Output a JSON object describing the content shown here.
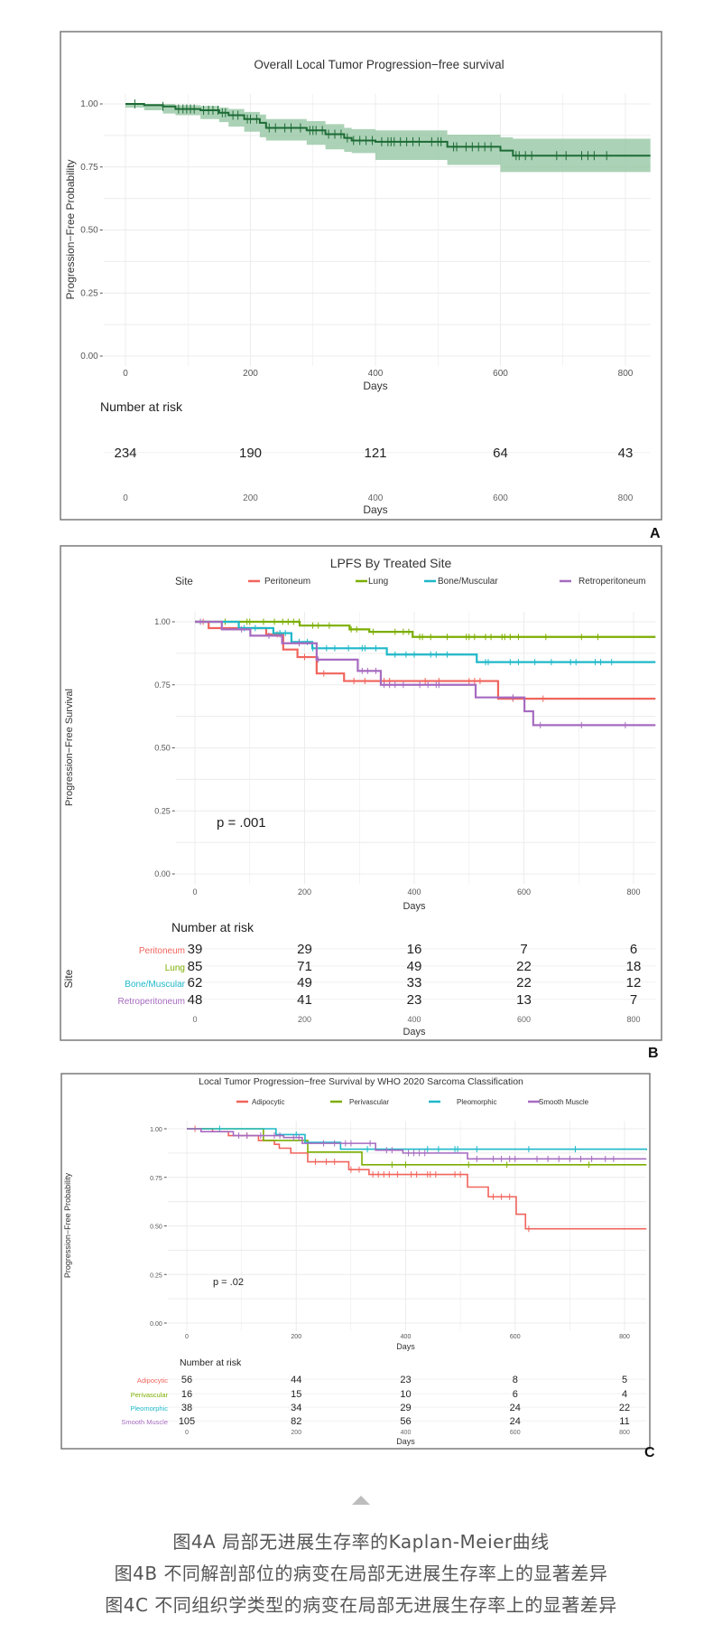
{
  "chart_data": [
    {
      "type": "line",
      "panel_label": "A",
      "title": "Overall Local Tumor Progression−free survival",
      "xlabel": "Days",
      "ylabel": "Progression−Free Probability",
      "xlim": [
        0,
        840
      ],
      "ylim": [
        0,
        1
      ],
      "xticks": [
        "0",
        "200",
        "400",
        "600",
        "800"
      ],
      "yticks": [
        "0.00",
        "0.25",
        "0.50",
        "0.75",
        "1.00"
      ],
      "grid": true,
      "colors": {
        "line": "#1d6b35",
        "band": "#8fc39d"
      },
      "series": [
        {
          "points": [
            [
              0,
              1.0
            ],
            [
              30,
              0.995
            ],
            [
              60,
              0.99
            ],
            [
              80,
              0.98
            ],
            [
              120,
              0.975
            ],
            [
              150,
              0.965
            ],
            [
              165,
              0.955
            ],
            [
              190,
              0.94
            ],
            [
              215,
              0.925
            ],
            [
              225,
              0.905
            ],
            [
              290,
              0.895
            ],
            [
              320,
              0.88
            ],
            [
              350,
              0.865
            ],
            [
              362,
              0.855
            ],
            [
              400,
              0.85
            ],
            [
              515,
              0.83
            ],
            [
              600,
              0.815
            ],
            [
              620,
              0.795
            ],
            [
              840,
              0.795
            ]
          ],
          "ci_lower": [
            [
              0,
              1.0
            ],
            [
              30,
              0.985
            ],
            [
              60,
              0.975
            ],
            [
              80,
              0.962
            ],
            [
              120,
              0.955
            ],
            [
              150,
              0.94
            ],
            [
              165,
              0.928
            ],
            [
              190,
              0.91
            ],
            [
              215,
              0.89
            ],
            [
              225,
              0.868
            ],
            [
              290,
              0.855
            ],
            [
              320,
              0.838
            ],
            [
              350,
              0.82
            ],
            [
              362,
              0.81
            ],
            [
              400,
              0.805
            ],
            [
              515,
              0.778
            ],
            [
              600,
              0.758
            ],
            [
              620,
              0.73
            ],
            [
              840,
              0.73
            ]
          ],
          "ci_upper": [
            [
              0,
              1.0
            ],
            [
              30,
              1.0
            ],
            [
              60,
              1.0
            ],
            [
              80,
              0.995
            ],
            [
              120,
              0.992
            ],
            [
              150,
              0.985
            ],
            [
              165,
              0.98
            ],
            [
              190,
              0.968
            ],
            [
              215,
              0.958
            ],
            [
              225,
              0.94
            ],
            [
              290,
              0.932
            ],
            [
              320,
              0.92
            ],
            [
              350,
              0.905
            ],
            [
              362,
              0.9
            ],
            [
              400,
              0.895
            ],
            [
              515,
              0.878
            ],
            [
              600,
              0.868
            ],
            [
              620,
              0.862
            ],
            [
              840,
              0.862
            ]
          ],
          "censored": [
            15,
            60,
            85,
            92,
            98,
            104,
            110,
            125,
            133,
            140,
            148,
            155,
            160,
            172,
            180,
            195,
            200,
            210,
            230,
            240,
            255,
            265,
            280,
            295,
            300,
            305,
            315,
            325,
            335,
            345,
            355,
            365,
            375,
            385,
            395,
            410,
            420,
            425,
            430,
            440,
            450,
            460,
            470,
            490,
            500,
            505,
            525,
            530,
            545,
            555,
            565,
            575,
            585,
            625,
            630,
            640,
            650,
            690,
            705,
            730,
            740,
            750,
            770
          ]
        }
      ],
      "risk_table": {
        "title": "Number at risk",
        "xlabel": "Days",
        "rows": [
          {
            "values": [
              234,
              190,
              121,
              64,
              43
            ]
          }
        ]
      }
    },
    {
      "type": "line",
      "panel_label": "B",
      "title": "LPFS By Treated Site",
      "legend_title": "Site",
      "legend_position": "top",
      "xlabel": "Days",
      "ylabel": "Progression−Free Survival",
      "xlim": [
        0,
        840
      ],
      "ylim": [
        0,
        1
      ],
      "xticks": [
        "0",
        "200",
        "400",
        "600",
        "800"
      ],
      "yticks": [
        "0.00",
        "0.25",
        "0.50",
        "0.75",
        "1.00"
      ],
      "grid": true,
      "annotation": "p = .001",
      "series": [
        {
          "name": "Peritoneum",
          "color": "#f0645c",
          "points": [
            [
              0,
              1.0
            ],
            [
              25,
              0.975
            ],
            [
              130,
              0.95
            ],
            [
              161,
              0.89
            ],
            [
              187,
              0.86
            ],
            [
              222,
              0.795
            ],
            [
              272,
              0.765
            ],
            [
              553,
              0.695
            ],
            [
              840,
              0.695
            ]
          ],
          "censored": [
            15,
            150,
            155,
            200,
            235,
            290,
            310,
            345,
            355,
            420,
            445,
            500,
            510,
            520,
            580,
            635
          ]
        },
        {
          "name": "Lung",
          "color": "#7cae00",
          "points": [
            [
              0,
              1.0
            ],
            [
              191,
              0.985
            ],
            [
              282,
              0.97
            ],
            [
              318,
              0.96
            ],
            [
              397,
              0.94
            ],
            [
              840,
              0.94
            ]
          ],
          "censored": [
            55,
            95,
            100,
            125,
            145,
            160,
            170,
            180,
            190,
            215,
            225,
            245,
            285,
            295,
            325,
            365,
            380,
            390,
            410,
            415,
            430,
            460,
            495,
            500,
            510,
            530,
            540,
            560,
            565,
            575,
            590,
            640,
            705,
            735
          ]
        },
        {
          "name": "Bone/Muscular",
          "color": "#1fb8c9",
          "points": [
            [
              0,
              1.0
            ],
            [
              80,
              0.975
            ],
            [
              143,
              0.955
            ],
            [
              176,
              0.92
            ],
            [
              214,
              0.895
            ],
            [
              350,
              0.87
            ],
            [
              514,
              0.84
            ],
            [
              840,
              0.84
            ]
          ],
          "censored": [
            90,
            110,
            155,
            165,
            190,
            205,
            215,
            240,
            255,
            280,
            305,
            310,
            330,
            365,
            385,
            400,
            430,
            440,
            460,
            530,
            535,
            575,
            590,
            620,
            650,
            685,
            695,
            730,
            740,
            760
          ]
        },
        {
          "name": "Retroperitoneum",
          "color": "#a66bc0",
          "points": [
            [
              0,
              1.0
            ],
            [
              49,
              0.97
            ],
            [
              101,
              0.945
            ],
            [
              159,
              0.915
            ],
            [
              222,
              0.85
            ],
            [
              297,
              0.805
            ],
            [
              339,
              0.75
            ],
            [
              512,
              0.7
            ],
            [
              601,
              0.645
            ],
            [
              617,
              0.59
            ],
            [
              840,
              0.59
            ]
          ],
          "censored": [
            10,
            85,
            135,
            190,
            225,
            305,
            315,
            330,
            345,
            355,
            365,
            380,
            410,
            425,
            440,
            445,
            580,
            630,
            705,
            785
          ]
        }
      ],
      "risk_table": {
        "title": "Number at risk",
        "ylabel": "Site",
        "xlabel": "Days",
        "rows": [
          {
            "name": "Peritoneum",
            "values": [
              39,
              29,
              16,
              7,
              6
            ]
          },
          {
            "name": "Lung",
            "values": [
              85,
              71,
              49,
              22,
              18
            ]
          },
          {
            "name": "Bone/Muscular",
            "values": [
              62,
              49,
              33,
              22,
              12
            ]
          },
          {
            "name": "Retroperitoneum",
            "values": [
              48,
              41,
              23,
              13,
              7
            ]
          }
        ]
      }
    },
    {
      "type": "line",
      "panel_label": "C",
      "title": "Local Tumor Progression−free Survival by WHO 2020 Sarcoma Classification",
      "legend_position": "top",
      "xlabel": "Days",
      "ylabel": "Progression−Free Probability",
      "xlim": [
        0,
        840
      ],
      "ylim": [
        0,
        1
      ],
      "xticks": [
        "0",
        "200",
        "400",
        "600",
        "800"
      ],
      "yticks": [
        "0.00",
        "0.25",
        "0.50",
        "0.75",
        "1.00"
      ],
      "grid": true,
      "annotation": "p = .02",
      "series": [
        {
          "name": "Adipocytic",
          "color": "#f0645c",
          "points": [
            [
              0,
              1.0
            ],
            [
              47,
              0.985
            ],
            [
              76,
              0.965
            ],
            [
              131,
              0.94
            ],
            [
              160,
              0.92
            ],
            [
              169,
              0.9
            ],
            [
              190,
              0.875
            ],
            [
              221,
              0.83
            ],
            [
              296,
              0.79
            ],
            [
              333,
              0.765
            ],
            [
              513,
              0.7
            ],
            [
              551,
              0.65
            ],
            [
              602,
              0.56
            ],
            [
              619,
              0.485
            ],
            [
              840,
              0.485
            ]
          ],
          "censored": [
            15,
            110,
            235,
            255,
            270,
            300,
            315,
            340,
            350,
            360,
            370,
            385,
            410,
            420,
            440,
            445,
            455,
            490,
            500,
            560,
            575,
            590,
            625
          ]
        },
        {
          "name": "Perivascular",
          "color": "#7cae00",
          "points": [
            [
              0,
              1.0
            ],
            [
              140,
              0.94
            ],
            [
              221,
              0.88
            ],
            [
              320,
              0.815
            ],
            [
              840,
              0.815
            ]
          ],
          "censored": [
            375,
            400,
            515,
            585,
            735
          ]
        },
        {
          "name": "Pleomorphic",
          "color": "#1fb8c9",
          "points": [
            [
              0,
              1.0
            ],
            [
              163,
              0.97
            ],
            [
              216,
              0.93
            ],
            [
              281,
              0.895
            ],
            [
              840,
              0.89
            ]
          ],
          "censored": [
            60,
            200,
            330,
            440,
            460,
            490,
            495,
            530,
            625,
            710
          ]
        },
        {
          "name": "Smooth Muscle",
          "color": "#a66bc0",
          "points": [
            [
              0,
              1.0
            ],
            [
              26,
              0.985
            ],
            [
              85,
              0.965
            ],
            [
              177,
              0.955
            ],
            [
              211,
              0.925
            ],
            [
              345,
              0.89
            ],
            [
              395,
              0.875
            ],
            [
              513,
              0.845
            ],
            [
              840,
              0.845
            ]
          ],
          "censored": [
            95,
            110,
            135,
            160,
            170,
            195,
            205,
            250,
            270,
            290,
            300,
            335,
            365,
            375,
            405,
            415,
            425,
            435,
            530,
            560,
            575,
            590,
            600,
            640,
            660,
            680,
            700,
            720,
            740,
            765,
            780
          ]
        }
      ],
      "risk_table": {
        "title": "Number at risk",
        "xlabel": "Days",
        "rows": [
          {
            "name": "Adipocytic",
            "values": [
              56,
              44,
              23,
              8,
              5
            ]
          },
          {
            "name": "Perivascular",
            "values": [
              16,
              15,
              10,
              6,
              4
            ]
          },
          {
            "name": "Pleomorphic",
            "values": [
              38,
              34,
              29,
              24,
              22
            ]
          },
          {
            "name": "Smooth Muscle",
            "values": [
              105,
              82,
              56,
              24,
              11
            ]
          }
        ]
      }
    }
  ],
  "captions": [
    "图4A 局部无进展生存率的Kaplan-Meier曲线",
    "图4B  不同解剖部位的病变在局部无进展生存率上的显著差异",
    "图4C  不同组织学类型的病变在局部无进展生存率上的显著差异"
  ],
  "icons": {
    "caption_marker": "triangle-up-icon"
  }
}
